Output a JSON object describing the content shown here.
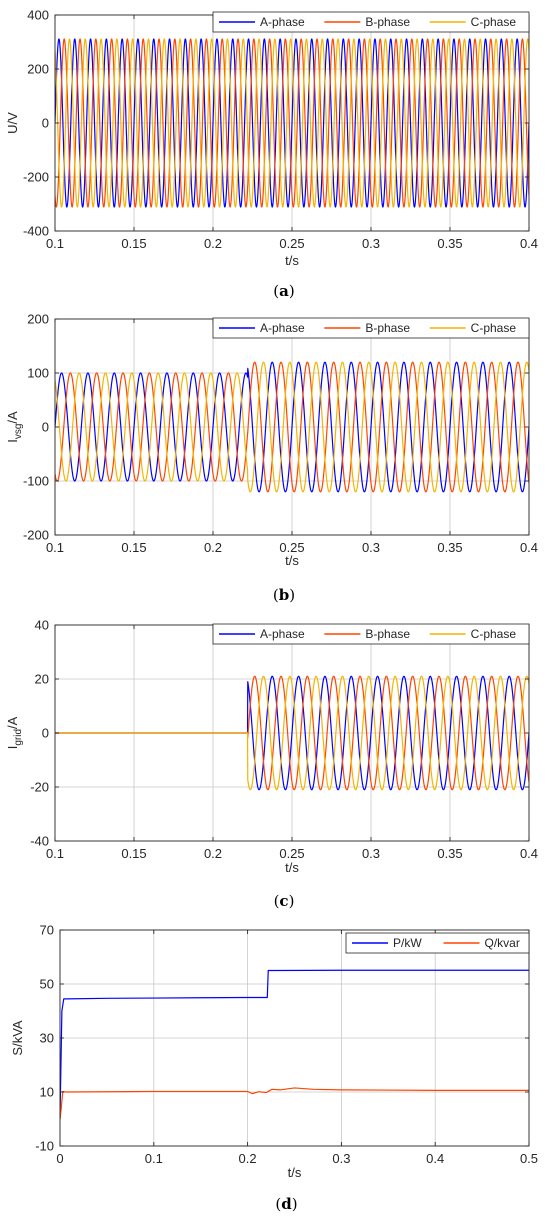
{
  "chart_data": [
    {
      "id": "a",
      "type": "line",
      "caption_open": "(",
      "caption_letter": "a",
      "caption_close": ")",
      "ylabel_main": "U/V",
      "ylabel_sub": "",
      "ylabel_tail": "",
      "xlabel": "t/s",
      "xlim": [
        0.1,
        0.4
      ],
      "ylim": [
        -400,
        400
      ],
      "xticks": [
        0.1,
        0.15,
        0.2,
        0.25,
        0.3,
        0.35,
        0.4
      ],
      "xtick_labels": [
        "0.1",
        "0.15",
        "0.2",
        "0.25",
        "0.3",
        "0.35",
        "0.4"
      ],
      "yticks": [
        -400,
        -200,
        0,
        200,
        400
      ],
      "ytick_labels": [
        "-400",
        "-200",
        "0",
        "200",
        "400"
      ],
      "grid": true,
      "legend_position": "top-right",
      "signal": {
        "kind": "three-phase-sine",
        "frequency_hz": 100,
        "step_time": null,
        "amplitude_before": 311,
        "amplitude_after": 311
      },
      "series": [
        {
          "name": "A-phase",
          "color": "#0000ff",
          "phase_deg": 0
        },
        {
          "name": "B-phase",
          "color": "#ff4500",
          "phase_deg": -120
        },
        {
          "name": "C-phase",
          "color": "#f5b400",
          "phase_deg": 120
        }
      ]
    },
    {
      "id": "b",
      "type": "line",
      "caption_open": "(",
      "caption_letter": "b",
      "caption_close": ")",
      "ylabel_main": "I",
      "ylabel_sub": "vsg",
      "ylabel_tail": "/A",
      "xlabel": "t/s",
      "xlim": [
        0.1,
        0.4
      ],
      "ylim": [
        -200,
        200
      ],
      "xticks": [
        0.1,
        0.15,
        0.2,
        0.25,
        0.3,
        0.35,
        0.4
      ],
      "xtick_labels": [
        "0.1",
        "0.15",
        "0.2",
        "0.25",
        "0.3",
        "0.35",
        "0.4"
      ],
      "yticks": [
        -200,
        -100,
        0,
        100,
        200
      ],
      "ytick_labels": [
        "-200",
        "-100",
        "0",
        "100",
        "200"
      ],
      "grid": true,
      "legend_position": "top-right",
      "signal": {
        "kind": "three-phase-sine",
        "frequency_hz": 60,
        "step_time": 0.222,
        "amplitude_before": 100,
        "amplitude_after": 120
      },
      "series": [
        {
          "name": "A-phase",
          "color": "#0000ff",
          "phase_deg": 0
        },
        {
          "name": "B-phase",
          "color": "#ff4500",
          "phase_deg": -120
        },
        {
          "name": "C-phase",
          "color": "#f5b400",
          "phase_deg": 120
        }
      ]
    },
    {
      "id": "c",
      "type": "line",
      "caption_open": "(",
      "caption_letter": "c",
      "caption_close": ")",
      "ylabel_main": "I",
      "ylabel_sub": "grid",
      "ylabel_tail": "/A",
      "xlabel": "t/s",
      "xlim": [
        0.1,
        0.4
      ],
      "ylim": [
        -40,
        40
      ],
      "xticks": [
        0.1,
        0.15,
        0.2,
        0.25,
        0.3,
        0.35,
        0.4
      ],
      "xtick_labels": [
        "0.1",
        "0.15",
        "0.2",
        "0.25",
        "0.3",
        "0.35",
        "0.4"
      ],
      "yticks": [
        -40,
        -20,
        0,
        20,
        40
      ],
      "ytick_labels": [
        "-40",
        "-20",
        "0",
        "20",
        "40"
      ],
      "grid": true,
      "legend_position": "top-right",
      "signal": {
        "kind": "three-phase-sine",
        "frequency_hz": 60,
        "step_time": 0.222,
        "amplitude_before": 0,
        "amplitude_after": 21
      },
      "series": [
        {
          "name": "A-phase",
          "color": "#0000ff",
          "phase_deg": 0
        },
        {
          "name": "B-phase",
          "color": "#ff4500",
          "phase_deg": -120
        },
        {
          "name": "C-phase",
          "color": "#f5b400",
          "phase_deg": 120
        }
      ]
    },
    {
      "id": "d",
      "type": "line",
      "caption_open": "(",
      "caption_letter": "d",
      "caption_close": ")",
      "ylabel_main": "S/kVA",
      "ylabel_sub": "",
      "ylabel_tail": "",
      "xlabel": "t/s",
      "xlim": [
        0,
        0.5
      ],
      "ylim": [
        -10,
        70
      ],
      "xticks": [
        0,
        0.1,
        0.2,
        0.3,
        0.4,
        0.5
      ],
      "xtick_labels": [
        "0",
        "0.1",
        "0.2",
        "0.3",
        "0.4",
        "0.5"
      ],
      "yticks": [
        -10,
        10,
        30,
        50,
        70
      ],
      "ytick_labels": [
        "-10",
        "10",
        "30",
        "50",
        "70"
      ],
      "grid": true,
      "legend_position": "top-right",
      "series": [
        {
          "name": "P/kW",
          "color": "#0000ff",
          "x": [
            0,
            0.002,
            0.004,
            0.008,
            0.05,
            0.1,
            0.15,
            0.2,
            0.221,
            0.222,
            0.226,
            0.3,
            0.4,
            0.5
          ],
          "y": [
            0,
            40,
            44.5,
            44.5,
            44.7,
            44.8,
            44.9,
            45,
            45,
            55,
            55,
            55.1,
            55.1,
            55.1
          ]
        },
        {
          "name": "Q/kvar",
          "color": "#ff4500",
          "x": [
            0,
            0.001,
            0.003,
            0.006,
            0.05,
            0.1,
            0.15,
            0.2,
            0.205,
            0.212,
            0.22,
            0.226,
            0.235,
            0.25,
            0.27,
            0.3,
            0.4,
            0.5
          ],
          "y": [
            0,
            3,
            10.2,
            10,
            10.1,
            10.2,
            10.2,
            10.2,
            9.4,
            10.1,
            9.8,
            11,
            10.8,
            11.5,
            11,
            10.8,
            10.6,
            10.6
          ]
        }
      ]
    }
  ]
}
